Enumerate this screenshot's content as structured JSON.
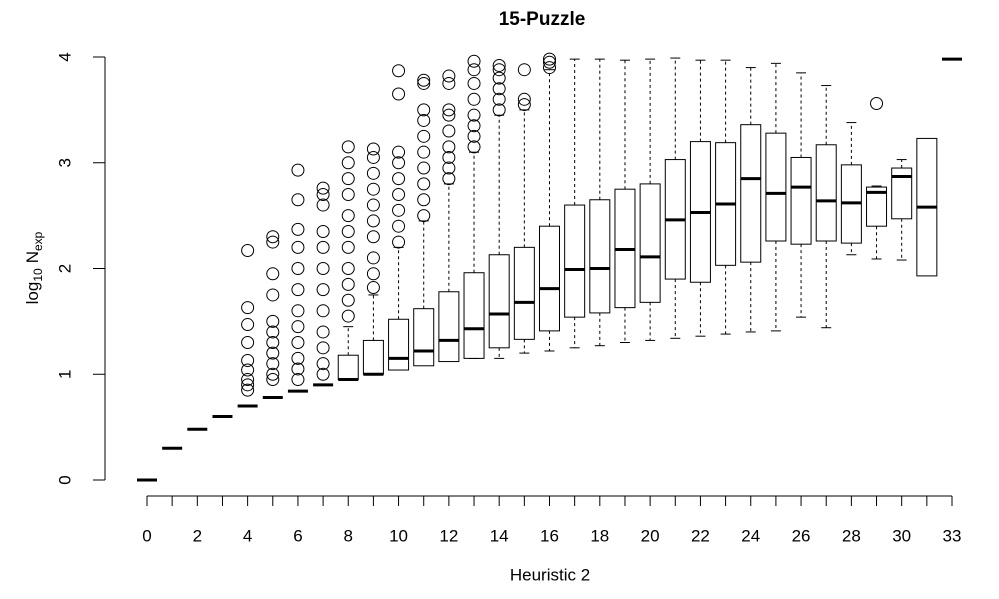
{
  "chart_data": {
    "type": "boxplot",
    "title": "15-Puzzle",
    "xlabel": "Heuristic 2",
    "ylabel": [
      "log",
      "10",
      "N",
      "exp"
    ],
    "categories": [
      0,
      null,
      2,
      null,
      4,
      null,
      6,
      null,
      8,
      null,
      10,
      null,
      12,
      null,
      14,
      null,
      16,
      null,
      18,
      null,
      20,
      null,
      22,
      null,
      24,
      null,
      26,
      null,
      28,
      null,
      30,
      null,
      33
    ],
    "ylim": [
      0,
      4
    ],
    "yticks": [
      0,
      1,
      2,
      3,
      4
    ],
    "boxes": [
      {
        "med": 0,
        "fliers": []
      },
      {
        "med": 0.3,
        "fliers": []
      },
      {
        "med": 0.48,
        "fliers": []
      },
      {
        "med": 0.6,
        "fliers": []
      },
      {
        "med": 0.7,
        "fliers": [
          0.85,
          0.9,
          0.95,
          1.04,
          1.13,
          1.3,
          1.47,
          1.63,
          2.17
        ]
      },
      {
        "med": 0.78,
        "fliers": [
          0.95,
          1.0,
          1.1,
          1.2,
          1.3,
          1.4,
          1.5,
          1.75,
          1.95,
          2.25,
          2.3
        ]
      },
      {
        "med": 0.84,
        "fliers": [
          0.95,
          1.05,
          1.15,
          1.3,
          1.45,
          1.6,
          1.8,
          2.0,
          2.2,
          2.37,
          2.65,
          2.93
        ]
      },
      {
        "med": 0.9,
        "fliers": [
          1.0,
          1.1,
          1.25,
          1.4,
          1.6,
          1.8,
          2.0,
          2.2,
          2.35,
          2.6,
          2.7,
          2.76
        ]
      },
      {
        "q1": 0.95,
        "med": 0.95,
        "q3": 1.18,
        "whishi": 1.45,
        "fliers": [
          1.55,
          1.7,
          1.85,
          2.0,
          2.2,
          2.35,
          2.5,
          2.7,
          2.85,
          3.0,
          3.15
        ]
      },
      {
        "q1": 1.0,
        "med": 1.0,
        "q3": 1.32,
        "whishi": 1.75,
        "fliers": [
          1.82,
          1.95,
          2.1,
          2.3,
          2.45,
          2.6,
          2.75,
          2.9,
          3.05,
          3.13
        ]
      },
      {
        "q1": 1.04,
        "med": 1.15,
        "q3": 1.52,
        "whishi": 2.2,
        "fliers": [
          2.25,
          2.4,
          2.55,
          2.7,
          2.85,
          3.0,
          3.1,
          3.65,
          3.87
        ]
      },
      {
        "q1": 1.08,
        "med": 1.22,
        "q3": 1.62,
        "whishi": 2.45,
        "fliers": [
          2.5,
          2.65,
          2.8,
          2.95,
          3.1,
          3.25,
          3.4,
          3.5,
          3.75,
          3.78
        ]
      },
      {
        "q1": 1.12,
        "med": 1.32,
        "q3": 1.78,
        "whishi": 2.8,
        "fliers": [
          2.85,
          2.95,
          3.05,
          3.15,
          3.3,
          3.45,
          3.5,
          3.75,
          3.82
        ]
      },
      {
        "whislo": 1.15,
        "q1": 1.15,
        "med": 1.43,
        "q3": 1.96,
        "whishi": 3.1,
        "fliers": [
          3.15,
          3.25,
          3.35,
          3.45,
          3.6,
          3.75,
          3.88,
          3.96
        ]
      },
      {
        "whislo": 1.15,
        "q1": 1.25,
        "med": 1.57,
        "q3": 2.13,
        "whishi": 3.45,
        "fliers": [
          3.5,
          3.6,
          3.7,
          3.8,
          3.88,
          3.92
        ]
      },
      {
        "whislo": 1.2,
        "q1": 1.33,
        "med": 1.68,
        "q3": 2.2,
        "whishi": 3.5,
        "fliers": [
          3.55,
          3.6,
          3.88
        ]
      },
      {
        "whislo": 1.22,
        "q1": 1.41,
        "med": 1.81,
        "q3": 2.4,
        "whishi": 3.88,
        "fliers": [
          3.9,
          3.95,
          3.98
        ]
      },
      {
        "whislo": 1.25,
        "q1": 1.54,
        "med": 1.99,
        "q3": 2.6,
        "whishi": 3.98,
        "fliers": []
      },
      {
        "whislo": 1.27,
        "q1": 1.58,
        "med": 2.0,
        "q3": 2.65,
        "whishi": 3.98,
        "fliers": []
      },
      {
        "whislo": 1.3,
        "q1": 1.63,
        "med": 2.18,
        "q3": 2.75,
        "whishi": 3.97,
        "fliers": []
      },
      {
        "whislo": 1.32,
        "q1": 1.68,
        "med": 2.11,
        "q3": 2.8,
        "whishi": 3.98,
        "fliers": []
      },
      {
        "whislo": 1.34,
        "q1": 1.9,
        "med": 2.46,
        "q3": 3.03,
        "whishi": 3.99,
        "fliers": []
      },
      {
        "whislo": 1.36,
        "q1": 1.87,
        "med": 2.53,
        "q3": 3.2,
        "whishi": 3.97,
        "fliers": []
      },
      {
        "whislo": 1.38,
        "q1": 2.03,
        "med": 2.61,
        "q3": 3.19,
        "whishi": 3.97,
        "fliers": []
      },
      {
        "whislo": 1.4,
        "q1": 2.06,
        "med": 2.85,
        "q3": 3.36,
        "whishi": 3.9,
        "fliers": []
      },
      {
        "whislo": 1.41,
        "q1": 2.26,
        "med": 2.71,
        "q3": 3.28,
        "whishi": 3.94,
        "fliers": []
      },
      {
        "whislo": 1.54,
        "q1": 2.23,
        "med": 2.77,
        "q3": 3.05,
        "whishi": 3.85,
        "fliers": []
      },
      {
        "whislo": 1.44,
        "q1": 2.26,
        "med": 2.64,
        "q3": 3.17,
        "whishi": 3.73,
        "fliers": []
      },
      {
        "whislo": 2.13,
        "q1": 2.24,
        "med": 2.62,
        "q3": 2.98,
        "whishi": 3.38,
        "fliers": []
      },
      {
        "whislo": 2.09,
        "q1": 2.4,
        "med": 2.72,
        "q3": 2.77,
        "whishi": 2.78,
        "fliers": [
          3.56
        ]
      },
      {
        "whislo": 2.08,
        "q1": 2.47,
        "med": 2.87,
        "q3": 2.95,
        "whishi": 3.03,
        "fliers": []
      },
      {
        "q1": 1.93,
        "med": 2.58,
        "q3": 3.23,
        "fliers": []
      },
      {
        "med": 3.98,
        "fliers": []
      }
    ]
  }
}
